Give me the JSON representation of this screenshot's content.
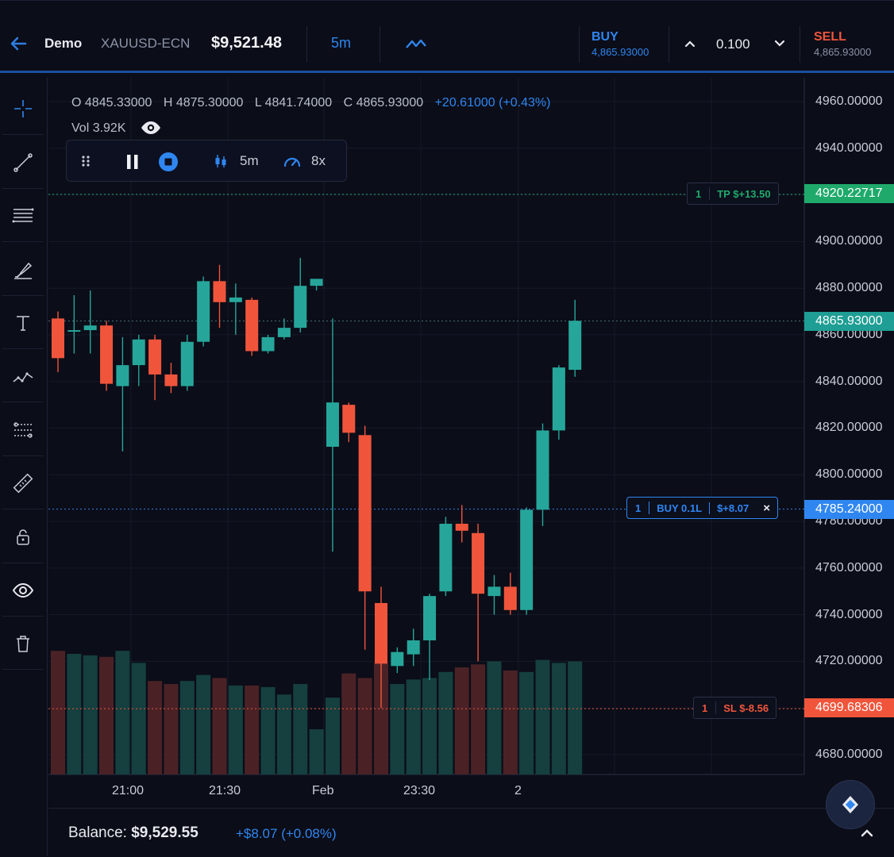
{
  "header": {
    "account": "Demo",
    "symbol": "XAUUSD-ECN",
    "balance": "$9,521.48",
    "timeframe": "5m",
    "buy": {
      "label": "BUY",
      "price": "4,865.93000"
    },
    "lot": "0.100",
    "sell": {
      "label": "SELL",
      "price": "4,865.93000"
    }
  },
  "ohlc": {
    "open": "O 4845.33000",
    "high": "H 4875.30000",
    "low": "L 4841.74000",
    "close": "C 4865.93000",
    "change": "+20.61000 (+0.43%)",
    "volume": "Vol 3.92K"
  },
  "player": {
    "timeframe": "5m",
    "speed": "8x"
  },
  "toolbar": [
    "crosshair-icon",
    "trend-line-icon",
    "fib-levels-icon",
    "brush-icon",
    "text-icon",
    "pattern-icon",
    "projection-icon",
    "ruler-icon",
    "lock-icon",
    "eye-icon",
    "trash-icon"
  ],
  "price_axis": [
    "4960.00000",
    "4940.00000",
    "4900.00000",
    "4880.00000",
    "4860.00000",
    "4840.00000",
    "4820.00000",
    "4800.00000",
    "4780.00000",
    "4760.00000",
    "4740.00000",
    "4720.00000",
    "4680.00000"
  ],
  "levels": {
    "tp": {
      "count": "1",
      "text": "TP $+13.50",
      "price": "4920.22717",
      "color": "#1faa6b"
    },
    "current": {
      "price": "4865.93000",
      "color": "#1e9e94"
    },
    "buy": {
      "count": "1",
      "text": "BUY 0.1L",
      "pnl": "$+8.07",
      "close": "×",
      "price": "4785.24000",
      "color": "#2f86f0"
    },
    "sl": {
      "count": "1",
      "text": "SL $-8.56",
      "price": "4699.68306",
      "color": "#f0553c"
    }
  },
  "time_axis": [
    "21:00",
    "21:30",
    "Feb",
    "23:30",
    "2"
  ],
  "footer": {
    "balance_label": "Balance:",
    "balance_value": "$9,529.55",
    "pnl": "+$8.07 (+0.08%)"
  },
  "colors": {
    "up": "#26a69a",
    "down": "#f0553c",
    "up_vol": "#15403f",
    "down_vol": "#4a2226",
    "grid": "#161b2a",
    "bg": "#0b0d18"
  },
  "chart_data": {
    "type": "candlestick",
    "ylim": [
      4674,
      4970
    ],
    "candles": [
      {
        "o": 4867,
        "h": 4870,
        "l": 4844,
        "c": 4850,
        "v": 0.82
      },
      {
        "o": 4862,
        "h": 4877,
        "l": 4852,
        "c": 4862,
        "v": 0.8
      },
      {
        "o": 4862,
        "h": 4879,
        "l": 4852,
        "c": 4864,
        "v": 0.79
      },
      {
        "o": 4864,
        "h": 4866,
        "l": 4836,
        "c": 4839,
        "v": 0.78
      },
      {
        "o": 4838,
        "h": 4859,
        "l": 4810,
        "c": 4847,
        "v": 0.82
      },
      {
        "o": 4847,
        "h": 4860,
        "l": 4838,
        "c": 4858,
        "v": 0.74
      },
      {
        "o": 4858,
        "h": 4860,
        "l": 4832,
        "c": 4843,
        "v": 0.62
      },
      {
        "o": 4843,
        "h": 4848,
        "l": 4835,
        "c": 4838,
        "v": 0.6
      },
      {
        "o": 4838,
        "h": 4860,
        "l": 4836,
        "c": 4857,
        "v": 0.62
      },
      {
        "o": 4857,
        "h": 4885,
        "l": 4855,
        "c": 4883,
        "v": 0.66
      },
      {
        "o": 4883,
        "h": 4890,
        "l": 4863,
        "c": 4874,
        "v": 0.64
      },
      {
        "o": 4874,
        "h": 4882,
        "l": 4860,
        "c": 4876,
        "v": 0.59
      },
      {
        "o": 4875,
        "h": 4876,
        "l": 4851,
        "c": 4853,
        "v": 0.59
      },
      {
        "o": 4853,
        "h": 4860,
        "l": 4852,
        "c": 4859,
        "v": 0.58
      },
      {
        "o": 4859,
        "h": 4867,
        "l": 4858,
        "c": 4863,
        "v": 0.53
      },
      {
        "o": 4863,
        "h": 4893,
        "l": 4861,
        "c": 4881,
        "v": 0.6
      },
      {
        "o": 4881,
        "h": 4884,
        "l": 4879,
        "c": 4884,
        "v": 0.3
      },
      {
        "o": 4812,
        "h": 4867,
        "l": 4767,
        "c": 4831,
        "v": 0.51
      },
      {
        "o": 4830,
        "h": 4831,
        "l": 4814,
        "c": 4818,
        "v": 0.67
      },
      {
        "o": 4817,
        "h": 4821,
        "l": 4725,
        "c": 4750,
        "v": 0.64
      },
      {
        "o": 4745,
        "h": 4752,
        "l": 4700,
        "c": 4719,
        "v": 0.74
      },
      {
        "o": 4718,
        "h": 4726,
        "l": 4715,
        "c": 4724,
        "v": 0.6
      },
      {
        "o": 4723,
        "h": 4734,
        "l": 4718,
        "c": 4729,
        "v": 0.63
      },
      {
        "o": 4729,
        "h": 4749,
        "l": 4712,
        "c": 4748,
        "v": 0.64
      },
      {
        "o": 4750,
        "h": 4782,
        "l": 4748,
        "c": 4779,
        "v": 0.68
      },
      {
        "o": 4779,
        "h": 4787,
        "l": 4771,
        "c": 4776,
        "v": 0.71
      },
      {
        "o": 4775,
        "h": 4779,
        "l": 4720,
        "c": 4749,
        "v": 0.73
      },
      {
        "o": 4748,
        "h": 4757,
        "l": 4740,
        "c": 4752,
        "v": 0.75
      },
      {
        "o": 4752,
        "h": 4758,
        "l": 4740,
        "c": 4742,
        "v": 0.69
      },
      {
        "o": 4742,
        "h": 4786,
        "l": 4740,
        "c": 4785,
        "v": 0.68
      },
      {
        "o": 4785,
        "h": 4822,
        "l": 4778,
        "c": 4819,
        "v": 0.76
      },
      {
        "o": 4819,
        "h": 4847,
        "l": 4815,
        "c": 4846,
        "v": 0.74
      },
      {
        "o": 4845,
        "h": 4875,
        "l": 4842,
        "c": 4866,
        "v": 0.75
      }
    ]
  }
}
